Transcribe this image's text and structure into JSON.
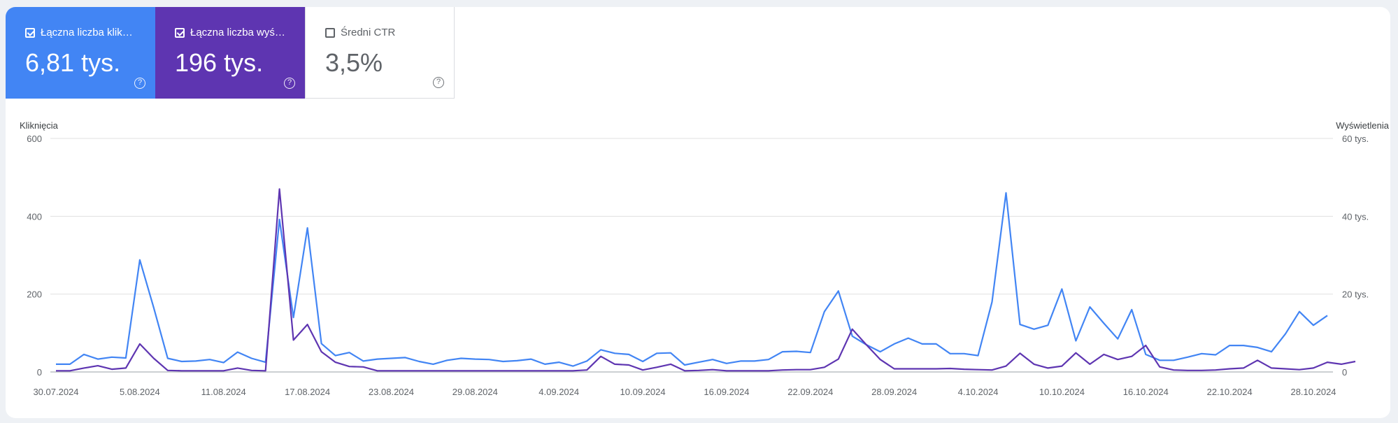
{
  "tiles": [
    {
      "label": "Łączna liczba klik…",
      "value": "6,81 tys.",
      "checked": true,
      "color": "#4285f4"
    },
    {
      "label": "Łączna liczba wyś…",
      "value": "196 tys.",
      "checked": true,
      "color": "#5e35b1"
    },
    {
      "label": "Średni CTR",
      "value": "3,5%",
      "checked": false,
      "color": "#ffffff"
    }
  ],
  "chart_data": {
    "type": "line",
    "left_axis_label": "Kliknięcia",
    "right_axis_label": "Wyświetlenia",
    "left_ticks": [
      "0",
      "200",
      "400",
      "600"
    ],
    "right_ticks": [
      "0",
      "20 tys.",
      "40 tys.",
      "60 tys."
    ],
    "ylim_left": [
      0,
      600
    ],
    "ylim_right": [
      0,
      60000
    ],
    "grid": true,
    "x_tick_labels": [
      "30.07.2024",
      "5.08.2024",
      "11.08.2024",
      "17.08.2024",
      "23.08.2024",
      "29.08.2024",
      "4.09.2024",
      "10.09.2024",
      "16.09.2024",
      "22.09.2024",
      "28.09.2024",
      "4.10.2024",
      "10.10.2024",
      "16.10.2024",
      "22.10.2024",
      "28.10.2024"
    ],
    "x_start": "30.07.2024",
    "x_end": "29.10.2024",
    "series": [
      {
        "axis": "left",
        "color": "#4285f4",
        "values": [
          20,
          20,
          45,
          33,
          38,
          36,
          288,
          165,
          35,
          27,
          28,
          32,
          24,
          51,
          35,
          25,
          392,
          140,
          370,
          73,
          42,
          50,
          28,
          33,
          35,
          37,
          27,
          20,
          30,
          35,
          33,
          32,
          27,
          29,
          33,
          20,
          25,
          15,
          28,
          57,
          48,
          45,
          27,
          48,
          49,
          18,
          25,
          32,
          22,
          28,
          28,
          32,
          52,
          53,
          50,
          155,
          208,
          92,
          70,
          52,
          72,
          87,
          72,
          72,
          47,
          47,
          42,
          180,
          460,
          122,
          110,
          120,
          213,
          80,
          167,
          125,
          85,
          160,
          45,
          30,
          30,
          38,
          47,
          44,
          68,
          68,
          63,
          52,
          98,
          155,
          120,
          145
        ]
      },
      {
        "axis": "right",
        "color": "#5e35b1",
        "values": [
          300,
          300,
          1000,
          1600,
          700,
          1000,
          7200,
          3500,
          400,
          300,
          300,
          300,
          300,
          1000,
          400,
          300,
          47000,
          8200,
          12200,
          5200,
          2500,
          1400,
          1300,
          300,
          300,
          300,
          300,
          300,
          300,
          300,
          300,
          300,
          300,
          300,
          300,
          300,
          300,
          300,
          500,
          4000,
          2000,
          1800,
          500,
          1200,
          2000,
          300,
          400,
          600,
          300,
          300,
          300,
          300,
          500,
          600,
          600,
          1200,
          3300,
          11000,
          7000,
          3200,
          800,
          800,
          800,
          800,
          900,
          700,
          600,
          500,
          1500,
          4800,
          2000,
          1000,
          1500,
          4900,
          2000,
          4500,
          3200,
          4000,
          6800,
          1300,
          500,
          400,
          400,
          500,
          800,
          1000,
          3000,
          1000,
          800,
          600,
          1000,
          2500,
          2000,
          2700
        ]
      }
    ]
  }
}
